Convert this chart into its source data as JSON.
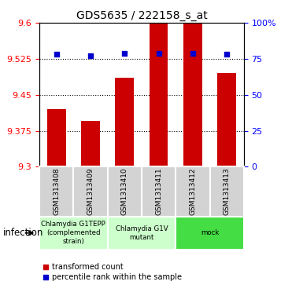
{
  "title": "GDS5635 / 222158_s_at",
  "samples": [
    "GSM1313408",
    "GSM1313409",
    "GSM1313410",
    "GSM1313411",
    "GSM1313412",
    "GSM1313413"
  ],
  "bar_values": [
    9.42,
    9.395,
    9.485,
    9.6,
    9.6,
    9.495
  ],
  "percentile_values": [
    78,
    77,
    79,
    79,
    79,
    78
  ],
  "ymin": 9.3,
  "ymax": 9.6,
  "yticks": [
    9.3,
    9.375,
    9.45,
    9.525,
    9.6
  ],
  "ytick_labels": [
    "9.3",
    "9.375",
    "9.45",
    "9.525",
    "9.6"
  ],
  "right_yticks": [
    0,
    25,
    50,
    75,
    100
  ],
  "right_ytick_labels": [
    "0",
    "25",
    "50",
    "75",
    "100%"
  ],
  "bar_color": "#cc0000",
  "dot_color": "#0000cc",
  "groups": [
    {
      "label": "Chlamydia G1TEPP\n(complemented\nstrain)",
      "start": 0,
      "end": 2,
      "color": "#ccffcc"
    },
    {
      "label": "Chlamydia G1V\nmutant",
      "start": 2,
      "end": 4,
      "color": "#ccffcc"
    },
    {
      "label": "mock",
      "start": 4,
      "end": 6,
      "color": "#44dd44"
    }
  ],
  "factor_label": "infection",
  "legend_bar_label": "transformed count",
  "legend_dot_label": "percentile rank within the sample"
}
